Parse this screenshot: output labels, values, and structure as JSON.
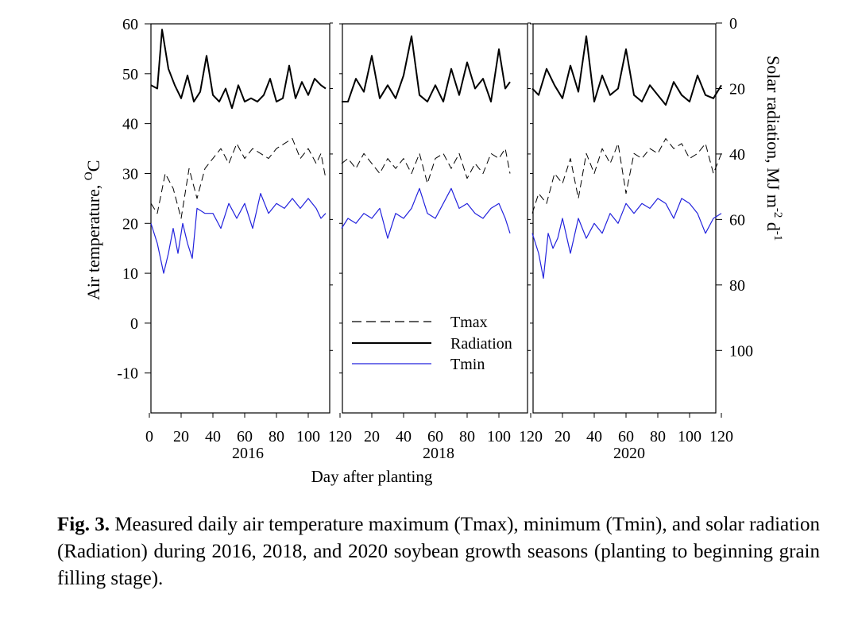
{
  "chart_data": {
    "type": "line",
    "xlabel": "Day after planting",
    "ylabel_left": "Air temperature, °C",
    "ylabel_left_main": "Air temperature, ",
    "ylabel_left_sup": "O",
    "ylabel_left_unit": "C",
    "ylabel_right": "Solar radiation, MJ m-2 d-1",
    "ylabel_right_main": "Solar radiation, MJ m",
    "ylabel_right_sup1": "-2",
    "ylabel_right_mid": " d",
    "ylabel_right_sup2": "-1",
    "xlim": [
      0,
      120
    ],
    "ylim_left": [
      -18,
      60
    ],
    "ylim_right": [
      0,
      120
    ],
    "left_ticks": [
      "60",
      "50",
      "40",
      "30",
      "20",
      "10",
      "0",
      "-10"
    ],
    "left_tick_values": [
      60,
      50,
      40,
      30,
      20,
      10,
      0,
      -10
    ],
    "right_ticks": [
      "0",
      "20",
      "40",
      "60",
      "80",
      "100"
    ],
    "right_tick_values": [
      0,
      20,
      40,
      60,
      80,
      100
    ],
    "x_ticks_panel1": [
      "0",
      "20",
      "40",
      "60",
      "80",
      "100",
      "120"
    ],
    "x_ticks_panel": [
      "20",
      "40",
      "60",
      "80",
      "100",
      "120"
    ],
    "x_tick_values": [
      0,
      20,
      40,
      60,
      80,
      100,
      120
    ],
    "legend": [
      {
        "name": "Tmax",
        "style": "dashed",
        "color": "#000000"
      },
      {
        "name": "Radiation",
        "style": "solid",
        "color": "#000000"
      },
      {
        "name": "Tmin",
        "style": "solid",
        "color": "#2222dd"
      }
    ],
    "panels": [
      {
        "year": "2016",
        "series": [
          {
            "name": "Tmax",
            "x": [
              1,
              5,
              10,
              15,
              20,
              25,
              30,
              35,
              40,
              45,
              50,
              55,
              60,
              65,
              70,
              75,
              80,
              85,
              90,
              95,
              100,
              105,
              108,
              111
            ],
            "values": [
              24,
              22,
              30,
              27,
              21,
              31,
              25,
              31,
              33,
              35,
              32,
              36,
              33,
              35,
              34,
              33,
              35,
              36,
              37,
              33,
              35,
              32,
              34,
              29
            ]
          },
          {
            "name": "Radiation",
            "x": [
              1,
              5,
              8,
              12,
              16,
              20,
              24,
              28,
              32,
              36,
              40,
              44,
              48,
              52,
              56,
              60,
              64,
              68,
              72,
              76,
              80,
              84,
              88,
              92,
              96,
              100,
              104,
              108,
              111
            ],
            "values": [
              19,
              20,
              2,
              14,
              19,
              23,
              16,
              24,
              21,
              10,
              22,
              24,
              20,
              26,
              19,
              24,
              23,
              24,
              22,
              17,
              24,
              23,
              13,
              23,
              18,
              22,
              17,
              19,
              20
            ]
          },
          {
            "name": "Tmin",
            "x": [
              1,
              5,
              9,
              12,
              15,
              18,
              21,
              24,
              27,
              30,
              35,
              40,
              45,
              50,
              55,
              60,
              65,
              70,
              75,
              80,
              85,
              90,
              95,
              100,
              105,
              108,
              111
            ],
            "values": [
              20,
              16,
              10,
              14,
              19,
              14,
              20,
              16,
              13,
              23,
              22,
              22,
              19,
              24,
              21,
              24,
              19,
              26,
              22,
              24,
              23,
              25,
              23,
              25,
              23,
              21,
              22
            ]
          }
        ]
      },
      {
        "year": "2018",
        "series": [
          {
            "name": "Tmax",
            "x": [
              1,
              5,
              10,
              15,
              20,
              25,
              30,
              35,
              40,
              45,
              50,
              55,
              60,
              65,
              70,
              75,
              80,
              85,
              90,
              95,
              100,
              104,
              107
            ],
            "values": [
              32,
              33,
              31,
              34,
              32,
              30,
              33,
              31,
              33,
              30,
              34,
              28,
              33,
              34,
              31,
              34,
              29,
              32,
              30,
              34,
              33,
              35,
              30
            ]
          },
          {
            "name": "Radiation",
            "x": [
              1,
              5,
              10,
              15,
              20,
              25,
              30,
              35,
              40,
              45,
              50,
              55,
              60,
              65,
              70,
              75,
              80,
              85,
              90,
              95,
              100,
              104,
              107
            ],
            "values": [
              24,
              24,
              17,
              21,
              10,
              23,
              19,
              23,
              16,
              4,
              22,
              24,
              19,
              24,
              14,
              22,
              12,
              20,
              17,
              24,
              8,
              20,
              18
            ]
          },
          {
            "name": "Tmin",
            "x": [
              1,
              5,
              10,
              15,
              20,
              25,
              30,
              35,
              40,
              45,
              50,
              55,
              60,
              65,
              70,
              75,
              80,
              85,
              90,
              95,
              100,
              104,
              107
            ],
            "values": [
              19,
              21,
              20,
              22,
              21,
              23,
              17,
              22,
              21,
              23,
              27,
              22,
              21,
              24,
              27,
              23,
              24,
              22,
              21,
              23,
              24,
              21,
              18
            ]
          }
        ]
      },
      {
        "year": "2020",
        "series": [
          {
            "name": "Tmax",
            "x": [
              1,
              5,
              10,
              15,
              20,
              25,
              30,
              35,
              40,
              45,
              50,
              55,
              60,
              65,
              70,
              75,
              80,
              85,
              90,
              95,
              100,
              105,
              110,
              115,
              120
            ],
            "values": [
              22,
              26,
              24,
              30,
              28,
              33,
              25,
              34,
              30,
              35,
              32,
              36,
              26,
              34,
              33,
              35,
              34,
              37,
              35,
              36,
              33,
              34,
              36,
              30,
              34
            ]
          },
          {
            "name": "Radiation",
            "x": [
              1,
              5,
              10,
              15,
              20,
              25,
              30,
              35,
              40,
              45,
              50,
              55,
              60,
              65,
              70,
              75,
              80,
              85,
              90,
              95,
              100,
              105,
              110,
              115,
              120
            ],
            "values": [
              20,
              22,
              14,
              19,
              23,
              13,
              21,
              4,
              24,
              16,
              22,
              20,
              8,
              22,
              24,
              19,
              22,
              25,
              18,
              22,
              24,
              16,
              22,
              23,
              19
            ]
          },
          {
            "name": "Tmin",
            "x": [
              1,
              5,
              8,
              11,
              14,
              17,
              20,
              25,
              30,
              35,
              40,
              45,
              50,
              55,
              60,
              65,
              70,
              75,
              80,
              85,
              90,
              95,
              100,
              105,
              110,
              115,
              120
            ],
            "values": [
              18,
              14,
              9,
              18,
              15,
              17,
              21,
              14,
              21,
              17,
              20,
              18,
              22,
              20,
              24,
              22,
              24,
              23,
              25,
              24,
              21,
              25,
              24,
              22,
              18,
              21,
              22
            ]
          }
        ]
      }
    ]
  },
  "caption": {
    "label": "Fig. 3.",
    "text": "Measured daily air temperature maximum (Tmax), minimum (Tmin), and solar radiation (Radiation) during 2016, 2018, and 2020 soybean growth seasons (planting to beginning grain filling stage)."
  }
}
